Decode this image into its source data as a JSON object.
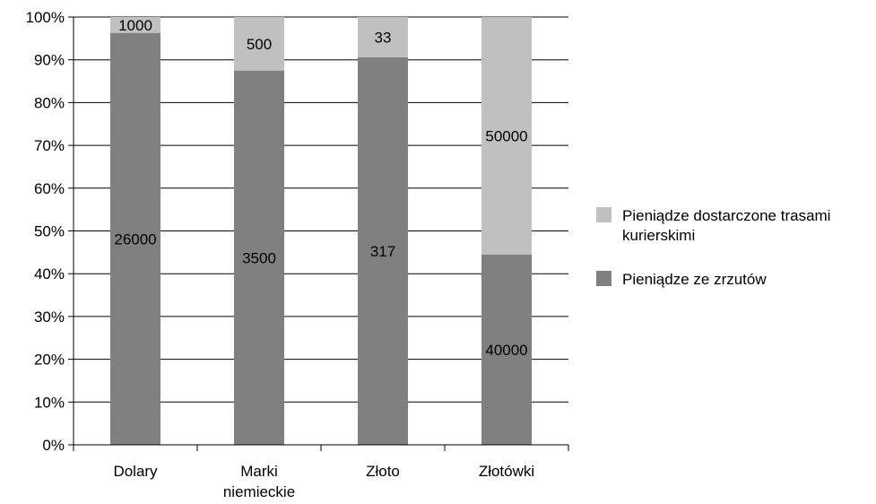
{
  "chart_data": {
    "type": "bar",
    "stacked": "percent",
    "categories": [
      [
        "Dolary"
      ],
      [
        "Marki",
        "niemieckie"
      ],
      [
        "Złoto"
      ],
      [
        "Złotówki"
      ]
    ],
    "series": [
      {
        "name": "Pieniądze ze zrzutów",
        "values": [
          26000,
          3500,
          317,
          40000
        ],
        "color": "#808080",
        "labels": [
          "26000",
          "3500",
          "317",
          "40000"
        ]
      },
      {
        "name": "Pieniądze dostarczone trasami kurierskimi",
        "values": [
          1000,
          500,
          33,
          50000
        ],
        "color": "#c0c0c0",
        "labels": [
          "1000",
          "500",
          "33",
          "50000"
        ]
      }
    ],
    "yticks": [
      "0%",
      "10%",
      "20%",
      "30%",
      "40%",
      "50%",
      "60%",
      "70%",
      "80%",
      "90%",
      "100%"
    ],
    "ylim": [
      0,
      100
    ],
    "grid": true,
    "legend": {
      "placement": "right",
      "items": [
        {
          "lines": [
            "Pieniądze dostarczone trasami",
            "kurierskimi"
          ],
          "color": "#c0c0c0"
        },
        {
          "lines": [
            "Pieniądze ze zrzutów"
          ],
          "color": "#808080"
        }
      ]
    }
  }
}
